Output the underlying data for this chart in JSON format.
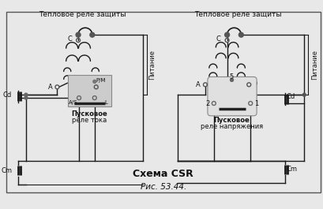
{
  "title": "Схема CSR",
  "caption": "Рис. 53.44.",
  "title1": "Тепловое реле защиты",
  "title2": "Тепловое реле защиты",
  "label_питание": "Питание",
  "bg_color": "#e8e8e8",
  "line_color": "#1a1a1a",
  "dot_color": "#666666",
  "relay_box_left_color": "#cccccc",
  "relay_box_right_color": "#e0e0e0"
}
